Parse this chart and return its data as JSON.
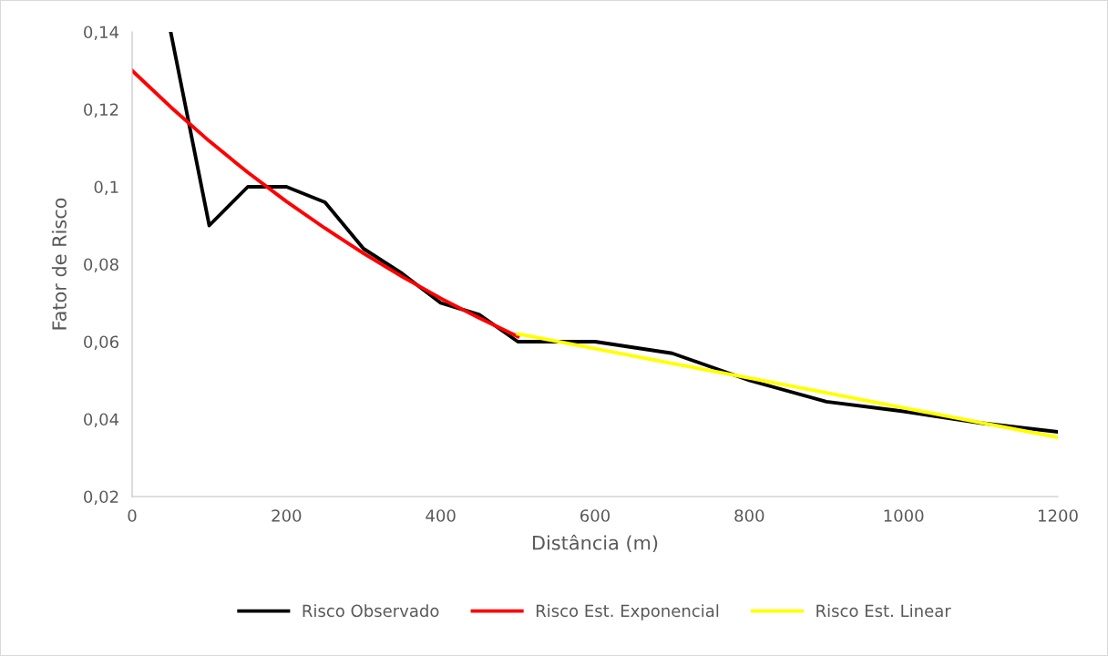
{
  "chart_data": {
    "type": "line",
    "xlabel": "Distância (m)",
    "ylabel": "Fator de Risco",
    "xlim": [
      0,
      1200
    ],
    "ylim": [
      0.02,
      0.14
    ],
    "xticks": [
      0,
      200,
      400,
      600,
      800,
      1000,
      1200
    ],
    "yticks": [
      {
        "value": 0.02,
        "label": "0,02"
      },
      {
        "value": 0.04,
        "label": "0,04"
      },
      {
        "value": 0.06,
        "label": "0,06"
      },
      {
        "value": 0.08,
        "label": "0,08"
      },
      {
        "value": 0.1,
        "label": "0,1"
      },
      {
        "value": 0.12,
        "label": "0,12"
      },
      {
        "value": 0.14,
        "label": "0,14"
      }
    ],
    "grid": false,
    "legend": "bottom",
    "marker": "none",
    "line_style": "solid",
    "series": [
      {
        "name": "Risco Observado",
        "color": "#000000",
        "x": [
          50,
          100,
          150,
          200,
          250,
          300,
          350,
          400,
          450,
          500,
          600,
          700,
          800,
          900,
          1000,
          1100,
          1200
        ],
        "values": [
          0.14,
          0.09,
          0.1,
          0.1,
          0.096,
          0.084,
          0.0776,
          0.07,
          0.067,
          0.06,
          0.06,
          0.057,
          0.05,
          0.0445,
          0.042,
          0.039,
          0.0367
        ]
      },
      {
        "name": "Risco Est. Exponencial",
        "color": "#ff0000",
        "x": [
          0,
          50,
          100,
          150,
          200,
          250,
          300,
          350,
          400,
          450,
          500
        ],
        "values": [
          0.13,
          0.1206,
          0.1118,
          0.1037,
          0.0962,
          0.0893,
          0.0828,
          0.0768,
          0.0712,
          0.0661,
          0.0613
        ]
      },
      {
        "name": "Risco Est. Linear",
        "color": "#ffff00",
        "x": [
          500,
          600,
          700,
          800,
          900,
          1000,
          1100,
          1200
        ],
        "values": [
          0.062,
          0.0582,
          0.0544,
          0.0506,
          0.0468,
          0.0429,
          0.0391,
          0.0353
        ]
      }
    ]
  }
}
